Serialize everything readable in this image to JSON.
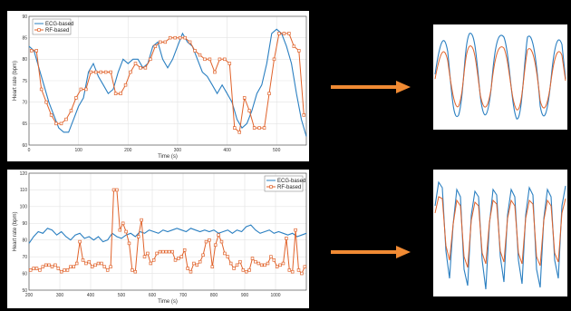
{
  "colors": {
    "ecg": "#2a7fc1",
    "rf": "#e0622a",
    "arrow": "#f08a33",
    "background": "#000000"
  },
  "chart_data": [
    {
      "type": "line",
      "xlabel": "Time (s)",
      "ylabel": "Heart rate (bpm)",
      "xlim": [
        0,
        560
      ],
      "ylim": [
        60,
        90
      ],
      "xticks": [
        0,
        100,
        200,
        300,
        400,
        500
      ],
      "yticks": [
        60,
        65,
        70,
        75,
        80,
        85,
        90
      ],
      "grid": true,
      "legend": "top-left",
      "series": [
        {
          "name": "ECG-based",
          "x": [
            0,
            10,
            20,
            30,
            40,
            50,
            60,
            70,
            80,
            90,
            100,
            110,
            120,
            130,
            140,
            150,
            160,
            170,
            180,
            190,
            200,
            210,
            220,
            230,
            240,
            250,
            260,
            270,
            280,
            290,
            300,
            310,
            320,
            330,
            340,
            350,
            360,
            370,
            380,
            390,
            400,
            410,
            420,
            430,
            440,
            450,
            460,
            470,
            480,
            490,
            500,
            510,
            520,
            530,
            540,
            550,
            560
          ],
          "y": [
            83,
            82,
            78,
            74,
            70,
            67,
            64,
            63,
            63,
            66,
            69,
            71,
            77,
            79,
            76,
            74,
            72,
            73,
            77,
            80,
            79,
            80,
            80,
            78,
            79,
            83,
            84,
            80,
            78,
            80,
            83,
            86,
            84,
            83,
            80,
            77,
            76,
            74,
            72,
            74,
            72,
            70,
            66,
            64,
            65,
            68,
            72,
            74,
            79,
            86,
            87,
            86,
            83,
            79,
            72,
            66,
            62
          ]
        },
        {
          "name": "RF-based",
          "x": [
            5,
            15,
            25,
            35,
            45,
            55,
            65,
            75,
            85,
            95,
            105,
            115,
            125,
            135,
            145,
            155,
            165,
            175,
            185,
            195,
            205,
            215,
            225,
            235,
            245,
            255,
            265,
            275,
            285,
            295,
            305,
            315,
            325,
            335,
            345,
            355,
            365,
            375,
            385,
            395,
            405,
            415,
            425,
            435,
            445,
            455,
            465,
            475,
            485,
            495,
            505,
            515,
            525,
            535,
            545,
            555
          ],
          "y": [
            82,
            82,
            73,
            70,
            67,
            65,
            65,
            66,
            68,
            71,
            73,
            73,
            77,
            77,
            77,
            77,
            77,
            72,
            72,
            74,
            77,
            79,
            78,
            78,
            80,
            83,
            84,
            84,
            85,
            85,
            85,
            85,
            84,
            82,
            81,
            80,
            80,
            77,
            80,
            80,
            79,
            64,
            63,
            71,
            68,
            64,
            64,
            64,
            72,
            80,
            86,
            86,
            86,
            83,
            82,
            67
          ]
        }
      ]
    },
    {
      "type": "line",
      "xlabel": "Time (s)",
      "ylabel": "Heart rate (bpm)",
      "xlim": [
        200,
        1100
      ],
      "ylim": [
        50,
        120
      ],
      "xticks": [
        200,
        300,
        400,
        500,
        600,
        700,
        800,
        900,
        1000
      ],
      "yticks": [
        50,
        60,
        70,
        80,
        90,
        100,
        110,
        120
      ],
      "grid": true,
      "legend": "top-right",
      "series": [
        {
          "name": "ECG-based",
          "x": [
            200,
            215,
            230,
            245,
            260,
            275,
            290,
            305,
            320,
            335,
            350,
            365,
            380,
            395,
            410,
            425,
            440,
            455,
            470,
            485,
            500,
            515,
            530,
            545,
            560,
            575,
            590,
            605,
            620,
            635,
            650,
            665,
            680,
            695,
            710,
            725,
            740,
            755,
            770,
            785,
            800,
            815,
            830,
            845,
            860,
            875,
            890,
            905,
            920,
            935,
            950,
            965,
            980,
            995,
            1010,
            1025,
            1040,
            1055,
            1070,
            1085,
            1100
          ],
          "y": [
            78,
            82,
            85,
            84,
            87,
            86,
            83,
            85,
            82,
            80,
            83,
            84,
            81,
            82,
            80,
            82,
            79,
            80,
            84,
            82,
            81,
            83,
            84,
            82,
            85,
            84,
            86,
            85,
            84,
            86,
            85,
            86,
            87,
            86,
            85,
            87,
            86,
            85,
            86,
            85,
            86,
            84,
            85,
            86,
            84,
            86,
            85,
            88,
            89,
            86,
            84,
            85,
            86,
            84,
            85,
            84,
            83,
            84,
            82,
            83,
            84
          ]
        },
        {
          "name": "RF-based",
          "x": [
            205,
            215,
            225,
            235,
            245,
            255,
            265,
            275,
            285,
            295,
            305,
            315,
            325,
            335,
            345,
            355,
            365,
            375,
            385,
            395,
            405,
            415,
            425,
            435,
            445,
            455,
            465,
            475,
            485,
            495,
            505,
            515,
            525,
            535,
            545,
            555,
            565,
            575,
            585,
            595,
            605,
            615,
            625,
            635,
            645,
            655,
            665,
            675,
            685,
            695,
            705,
            715,
            725,
            735,
            745,
            755,
            765,
            775,
            785,
            795,
            805,
            815,
            825,
            835,
            845,
            855,
            865,
            875,
            885,
            895,
            905,
            915,
            925,
            935,
            945,
            955,
            965,
            975,
            985,
            995,
            1005,
            1015,
            1025,
            1035,
            1045,
            1055,
            1065,
            1075,
            1085,
            1095
          ],
          "y": [
            62,
            63,
            63,
            62,
            64,
            65,
            65,
            64,
            65,
            63,
            61,
            62,
            62,
            64,
            64,
            66,
            79,
            68,
            66,
            67,
            64,
            65,
            66,
            66,
            64,
            62,
            64,
            110,
            110,
            86,
            90,
            85,
            78,
            62,
            61,
            82,
            92,
            70,
            72,
            66,
            68,
            72,
            73,
            73,
            73,
            73,
            73,
            68,
            69,
            70,
            74,
            63,
            61,
            66,
            65,
            67,
            71,
            79,
            80,
            64,
            77,
            83,
            79,
            72,
            70,
            66,
            63,
            65,
            67,
            62,
            61,
            62,
            69,
            67,
            66,
            65,
            65,
            66,
            70,
            68,
            64,
            65,
            66,
            81,
            62,
            61,
            86,
            62,
            60,
            64
          ]
        }
      ]
    }
  ]
}
